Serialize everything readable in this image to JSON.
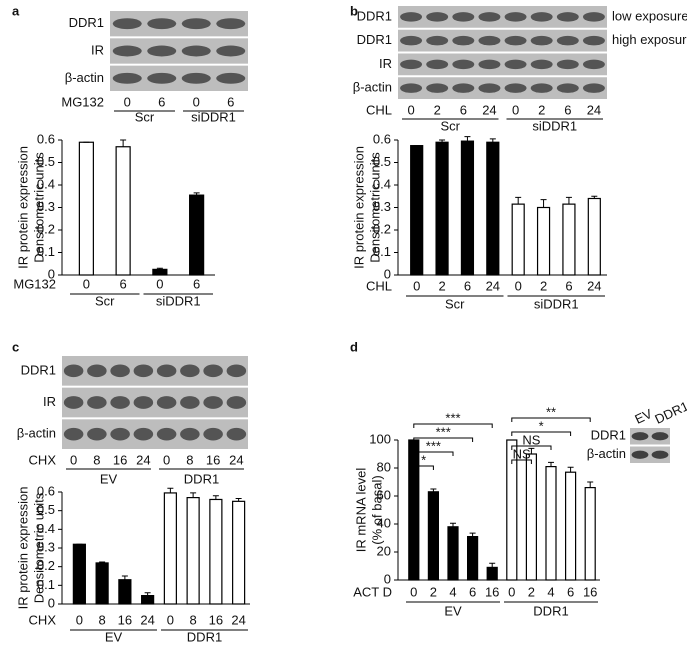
{
  "chart_data": [
    {
      "type": "bar",
      "panel": "a",
      "blot_rows": [
        "DDR1",
        "IR",
        "β-actin"
      ],
      "treatment": "MG132",
      "doses": [
        "0",
        "6",
        "0",
        "6"
      ],
      "groups": [
        "Scr",
        "siDDR1"
      ],
      "y_label": [
        "IR protein expression",
        "Densitometric units"
      ],
      "values": [
        0.59,
        0.57,
        0.025,
        0.355
      ],
      "errors": [
        0,
        0.03,
        0.005,
        0.01
      ],
      "colors": [
        "#ffffff",
        "#ffffff",
        "#000000",
        "#000000"
      ],
      "ylim": [
        0,
        0.6
      ],
      "yticks": [
        0,
        0.1,
        0.2,
        0.3,
        0.4,
        0.5,
        0.6
      ]
    },
    {
      "type": "bar",
      "panel": "b",
      "blot_rows": [
        "DDR1",
        "DDR1",
        "IR",
        "β-actin"
      ],
      "side_labels": [
        "low exposure",
        "high exposure"
      ],
      "treatment": "CHL",
      "doses": [
        "0",
        "2",
        "6",
        "24",
        "0",
        "2",
        "6",
        "24"
      ],
      "groups": [
        "Scr",
        "siDDR1"
      ],
      "y_label": [
        "IR protein expression",
        "Densitometric units"
      ],
      "values": [
        0.575,
        0.59,
        0.595,
        0.59,
        0.315,
        0.3,
        0.315,
        0.34
      ],
      "errors": [
        0,
        0.01,
        0.02,
        0.015,
        0.03,
        0.035,
        0.03,
        0.01
      ],
      "colors": [
        "#000000",
        "#000000",
        "#000000",
        "#000000",
        "#ffffff",
        "#ffffff",
        "#ffffff",
        "#ffffff"
      ],
      "ylim": [
        0,
        0.6
      ],
      "yticks": [
        0,
        0.1,
        0.2,
        0.3,
        0.4,
        0.5,
        0.6
      ]
    },
    {
      "type": "bar",
      "panel": "c",
      "blot_rows": [
        "DDR1",
        "IR",
        "β-actin"
      ],
      "treatment": "CHX",
      "doses": [
        "0",
        "8",
        "16",
        "24",
        "0",
        "8",
        "16",
        "24"
      ],
      "groups": [
        "EV",
        "DDR1"
      ],
      "y_label": [
        "IR protein expression",
        "Densitometric units"
      ],
      "values": [
        0.32,
        0.22,
        0.13,
        0.045,
        0.595,
        0.57,
        0.56,
        0.55
      ],
      "errors": [
        0,
        0.005,
        0.02,
        0.015,
        0.025,
        0.025,
        0.02,
        0.015
      ],
      "colors": [
        "#000000",
        "#000000",
        "#000000",
        "#000000",
        "#ffffff",
        "#ffffff",
        "#ffffff",
        "#ffffff"
      ],
      "ylim": [
        0,
        0.6
      ],
      "yticks": [
        0,
        0.1,
        0.2,
        0.3,
        0.4,
        0.5,
        0.6
      ]
    },
    {
      "type": "bar",
      "panel": "d",
      "treatment": "ACT D",
      "doses": [
        "0",
        "2",
        "4",
        "6",
        "16",
        "0",
        "2",
        "4",
        "6",
        "16"
      ],
      "groups": [
        "EV",
        "DDR1"
      ],
      "y_label": [
        "IR mRNA level",
        "(% of basal)"
      ],
      "values": [
        100,
        63,
        38,
        31,
        9,
        100,
        90,
        81,
        77,
        66
      ],
      "errors": [
        0,
        2,
        2.5,
        2.5,
        3,
        0,
        4,
        3,
        3.5,
        4
      ],
      "colors": [
        "#000000",
        "#000000",
        "#000000",
        "#000000",
        "#000000",
        "#ffffff",
        "#ffffff",
        "#ffffff",
        "#ffffff",
        "#ffffff"
      ],
      "ylim": [
        0,
        100
      ],
      "yticks": [
        0,
        20,
        40,
        60,
        80,
        100
      ],
      "brackets": [
        {
          "group": "EV",
          "to": "2",
          "label": "*"
        },
        {
          "group": "EV",
          "to": "4",
          "label": "***"
        },
        {
          "group": "EV",
          "to": "6",
          "label": "***"
        },
        {
          "group": "EV",
          "to": "16",
          "label": "***"
        },
        {
          "group": "DDR1",
          "to": "2",
          "label": "NS"
        },
        {
          "group": "DDR1",
          "to": "4",
          "label": "NS"
        },
        {
          "group": "DDR1",
          "to": "6",
          "label": "*"
        },
        {
          "group": "DDR1",
          "to": "16",
          "label": "**"
        }
      ],
      "inset_blot": {
        "columns": [
          "EV",
          "DDR1"
        ],
        "rows": [
          "DDR1",
          "β-actin"
        ]
      }
    }
  ]
}
